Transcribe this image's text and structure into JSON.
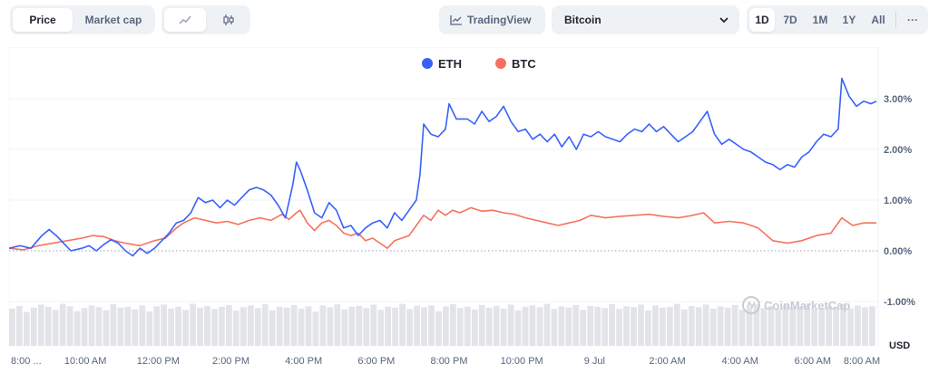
{
  "toolbar": {
    "metric_tabs": [
      {
        "label": "Price",
        "active": true
      },
      {
        "label": "Market cap",
        "active": false
      }
    ],
    "chart_style_icons": [
      "line-chart-icon",
      "candlestick-icon"
    ],
    "tradingview_label": "TradingView",
    "compare_select": {
      "value": "Bitcoin"
    },
    "ranges": [
      {
        "label": "1D",
        "active": true
      },
      {
        "label": "7D",
        "active": false
      },
      {
        "label": "1M",
        "active": false
      },
      {
        "label": "1Y",
        "active": false
      },
      {
        "label": "All",
        "active": false
      }
    ],
    "more_label": "···"
  },
  "watermark": "CoinMarketCap",
  "colors": {
    "eth": "#3861fb",
    "btc": "#f6725e",
    "grid": "#eff2f5",
    "axis_text": "#58667e"
  },
  "chart_data": {
    "type": "line",
    "legend_placement": "top-center",
    "yunit": "USD",
    "ylim": [
      -1.0,
      3.6
    ],
    "yticks": [
      3.0,
      2.0,
      1.0,
      0.0,
      -1.0
    ],
    "ytick_labels": [
      "3.00%",
      "2.00%",
      "1.00%",
      "0.00%",
      "-1.00%"
    ],
    "x_tick_labels": [
      "8:00 ...",
      "10:00 AM",
      "12:00 PM",
      "2:00 PM",
      "4:00 PM",
      "6:00 PM",
      "8:00 PM",
      "10:00 PM",
      "9 Jul",
      "2:00 AM",
      "4:00 AM",
      "6:00 AM",
      "8:00 AM"
    ],
    "x_tick_hours": [
      0.4,
      2.1,
      4.1,
      6.1,
      8.1,
      10.1,
      12.1,
      14.1,
      16.1,
      18.1,
      20.1,
      22.1,
      24.1
    ],
    "series": [
      {
        "name": "ETH",
        "color": "#3861fb",
        "points": [
          [
            0.0,
            0.05
          ],
          [
            0.3,
            0.1
          ],
          [
            0.6,
            0.05
          ],
          [
            0.9,
            0.3
          ],
          [
            1.1,
            0.42
          ],
          [
            1.3,
            0.3
          ],
          [
            1.5,
            0.15
          ],
          [
            1.7,
            0.0
          ],
          [
            2.0,
            0.05
          ],
          [
            2.2,
            0.1
          ],
          [
            2.4,
            0.0
          ],
          [
            2.6,
            0.12
          ],
          [
            2.8,
            0.22
          ],
          [
            3.0,
            0.15
          ],
          [
            3.2,
            0.0
          ],
          [
            3.4,
            -0.1
          ],
          [
            3.6,
            0.05
          ],
          [
            3.8,
            -0.05
          ],
          [
            4.0,
            0.05
          ],
          [
            4.2,
            0.2
          ],
          [
            4.4,
            0.35
          ],
          [
            4.6,
            0.55
          ],
          [
            4.8,
            0.6
          ],
          [
            5.0,
            0.75
          ],
          [
            5.2,
            1.05
          ],
          [
            5.4,
            0.95
          ],
          [
            5.6,
            1.0
          ],
          [
            5.8,
            0.85
          ],
          [
            6.0,
            1.0
          ],
          [
            6.2,
            0.9
          ],
          [
            6.4,
            1.05
          ],
          [
            6.6,
            1.2
          ],
          [
            6.8,
            1.25
          ],
          [
            7.0,
            1.2
          ],
          [
            7.2,
            1.1
          ],
          [
            7.4,
            0.9
          ],
          [
            7.6,
            0.65
          ],
          [
            7.8,
            1.3
          ],
          [
            7.9,
            1.75
          ],
          [
            8.0,
            1.6
          ],
          [
            8.2,
            1.2
          ],
          [
            8.4,
            0.75
          ],
          [
            8.6,
            0.65
          ],
          [
            8.8,
            0.95
          ],
          [
            9.0,
            0.8
          ],
          [
            9.2,
            0.45
          ],
          [
            9.4,
            0.5
          ],
          [
            9.6,
            0.3
          ],
          [
            9.8,
            0.45
          ],
          [
            10.0,
            0.55
          ],
          [
            10.2,
            0.6
          ],
          [
            10.4,
            0.45
          ],
          [
            10.6,
            0.75
          ],
          [
            10.8,
            0.6
          ],
          [
            11.0,
            0.8
          ],
          [
            11.2,
            1.0
          ],
          [
            11.3,
            1.5
          ],
          [
            11.4,
            2.5
          ],
          [
            11.6,
            2.3
          ],
          [
            11.8,
            2.25
          ],
          [
            12.0,
            2.4
          ],
          [
            12.1,
            2.9
          ],
          [
            12.3,
            2.6
          ],
          [
            12.6,
            2.6
          ],
          [
            12.8,
            2.5
          ],
          [
            13.0,
            2.75
          ],
          [
            13.2,
            2.55
          ],
          [
            13.4,
            2.65
          ],
          [
            13.6,
            2.85
          ],
          [
            13.8,
            2.55
          ],
          [
            14.0,
            2.35
          ],
          [
            14.2,
            2.4
          ],
          [
            14.4,
            2.2
          ],
          [
            14.6,
            2.3
          ],
          [
            14.8,
            2.15
          ],
          [
            15.0,
            2.3
          ],
          [
            15.2,
            2.05
          ],
          [
            15.4,
            2.25
          ],
          [
            15.6,
            2.0
          ],
          [
            15.8,
            2.3
          ],
          [
            16.0,
            2.25
          ],
          [
            16.2,
            2.35
          ],
          [
            16.4,
            2.25
          ],
          [
            16.6,
            2.2
          ],
          [
            16.8,
            2.15
          ],
          [
            17.0,
            2.3
          ],
          [
            17.2,
            2.4
          ],
          [
            17.4,
            2.35
          ],
          [
            17.6,
            2.5
          ],
          [
            17.8,
            2.35
          ],
          [
            18.0,
            2.45
          ],
          [
            18.2,
            2.3
          ],
          [
            18.4,
            2.15
          ],
          [
            18.6,
            2.25
          ],
          [
            18.8,
            2.35
          ],
          [
            19.0,
            2.55
          ],
          [
            19.2,
            2.75
          ],
          [
            19.4,
            2.3
          ],
          [
            19.6,
            2.1
          ],
          [
            19.8,
            2.2
          ],
          [
            20.0,
            2.1
          ],
          [
            20.2,
            2.0
          ],
          [
            20.4,
            1.95
          ],
          [
            20.6,
            1.85
          ],
          [
            20.8,
            1.75
          ],
          [
            21.0,
            1.7
          ],
          [
            21.2,
            1.6
          ],
          [
            21.4,
            1.7
          ],
          [
            21.6,
            1.65
          ],
          [
            21.8,
            1.85
          ],
          [
            22.0,
            1.95
          ],
          [
            22.2,
            2.15
          ],
          [
            22.4,
            2.3
          ],
          [
            22.6,
            2.25
          ],
          [
            22.8,
            2.4
          ],
          [
            22.9,
            3.4
          ],
          [
            23.1,
            3.05
          ],
          [
            23.3,
            2.85
          ],
          [
            23.5,
            2.95
          ],
          [
            23.7,
            2.9
          ],
          [
            23.85,
            2.95
          ]
        ]
      },
      {
        "name": "BTC",
        "color": "#f6725e",
        "points": [
          [
            0.0,
            0.05
          ],
          [
            0.4,
            0.02
          ],
          [
            0.8,
            0.1
          ],
          [
            1.2,
            0.15
          ],
          [
            1.6,
            0.2
          ],
          [
            2.0,
            0.25
          ],
          [
            2.3,
            0.3
          ],
          [
            2.6,
            0.28
          ],
          [
            2.9,
            0.2
          ],
          [
            3.2,
            0.15
          ],
          [
            3.6,
            0.1
          ],
          [
            4.0,
            0.2
          ],
          [
            4.3,
            0.25
          ],
          [
            4.6,
            0.45
          ],
          [
            4.8,
            0.55
          ],
          [
            5.1,
            0.65
          ],
          [
            5.4,
            0.6
          ],
          [
            5.7,
            0.55
          ],
          [
            6.0,
            0.58
          ],
          [
            6.3,
            0.52
          ],
          [
            6.6,
            0.6
          ],
          [
            6.9,
            0.65
          ],
          [
            7.2,
            0.6
          ],
          [
            7.5,
            0.72
          ],
          [
            7.7,
            0.62
          ],
          [
            7.9,
            0.75
          ],
          [
            8.0,
            0.8
          ],
          [
            8.2,
            0.55
          ],
          [
            8.4,
            0.4
          ],
          [
            8.6,
            0.55
          ],
          [
            8.8,
            0.6
          ],
          [
            9.0,
            0.5
          ],
          [
            9.2,
            0.35
          ],
          [
            9.4,
            0.3
          ],
          [
            9.6,
            0.35
          ],
          [
            9.8,
            0.2
          ],
          [
            10.0,
            0.25
          ],
          [
            10.2,
            0.15
          ],
          [
            10.4,
            0.05
          ],
          [
            10.6,
            0.2
          ],
          [
            10.8,
            0.25
          ],
          [
            11.0,
            0.3
          ],
          [
            11.2,
            0.5
          ],
          [
            11.4,
            0.7
          ],
          [
            11.6,
            0.6
          ],
          [
            11.8,
            0.8
          ],
          [
            12.0,
            0.7
          ],
          [
            12.2,
            0.8
          ],
          [
            12.4,
            0.75
          ],
          [
            12.7,
            0.85
          ],
          [
            13.0,
            0.78
          ],
          [
            13.3,
            0.8
          ],
          [
            13.6,
            0.75
          ],
          [
            13.9,
            0.72
          ],
          [
            14.2,
            0.65
          ],
          [
            14.5,
            0.6
          ],
          [
            14.8,
            0.55
          ],
          [
            15.1,
            0.5
          ],
          [
            15.4,
            0.55
          ],
          [
            15.7,
            0.6
          ],
          [
            16.0,
            0.7
          ],
          [
            16.4,
            0.65
          ],
          [
            16.8,
            0.68
          ],
          [
            17.2,
            0.7
          ],
          [
            17.6,
            0.72
          ],
          [
            18.0,
            0.68
          ],
          [
            18.4,
            0.65
          ],
          [
            18.8,
            0.7
          ],
          [
            19.1,
            0.75
          ],
          [
            19.4,
            0.55
          ],
          [
            19.8,
            0.58
          ],
          [
            20.2,
            0.55
          ],
          [
            20.6,
            0.45
          ],
          [
            21.0,
            0.2
          ],
          [
            21.4,
            0.15
          ],
          [
            21.8,
            0.2
          ],
          [
            22.2,
            0.3
          ],
          [
            22.6,
            0.35
          ],
          [
            22.9,
            0.65
          ],
          [
            23.2,
            0.5
          ],
          [
            23.5,
            0.55
          ],
          [
            23.85,
            0.55
          ]
        ]
      }
    ],
    "volume": {
      "color": "#d8dbe0",
      "values": [
        0.86,
        0.92,
        0.78,
        0.88,
        0.95,
        0.9,
        0.83,
        0.97,
        0.91,
        0.8,
        0.87,
        0.93,
        0.89,
        0.82,
        0.96,
        0.88,
        0.9,
        0.84,
        0.93,
        0.79,
        0.91,
        0.95,
        0.86,
        0.9,
        0.83,
        0.97,
        0.88,
        0.92,
        0.85,
        0.9,
        0.94,
        0.81,
        0.89,
        0.93,
        0.87,
        0.96,
        0.82,
        0.9,
        0.88,
        0.94,
        0.86,
        0.91,
        0.79,
        0.93,
        0.89,
        0.96,
        0.84,
        0.9,
        0.92,
        0.87,
        0.95,
        0.83,
        0.9,
        0.88,
        0.97,
        0.85,
        0.92,
        0.89,
        0.93,
        0.8,
        0.91,
        0.96,
        0.87,
        0.9,
        0.84,
        0.94,
        0.88,
        0.92,
        0.86,
        0.95,
        0.82,
        0.9,
        0.93,
        0.89,
        0.97,
        0.85,
        0.91,
        0.88,
        0.94,
        0.83,
        0.92,
        0.9,
        0.87,
        0.96,
        0.85,
        0.91,
        0.89,
        0.95,
        0.82,
        0.93,
        0.88,
        0.9,
        0.97,
        0.84,
        0.92,
        0.89,
        0.95,
        0.86,
        0.91,
        0.88,
        0.94,
        0.83,
        0.9,
        0.96,
        0.87,
        0.92,
        0.85,
        0.93,
        0.89,
        0.91,
        0.95,
        0.84,
        0.88,
        0.92,
        0.9,
        0.96,
        0.86,
        0.93,
        0.89,
        0.91
      ]
    }
  }
}
